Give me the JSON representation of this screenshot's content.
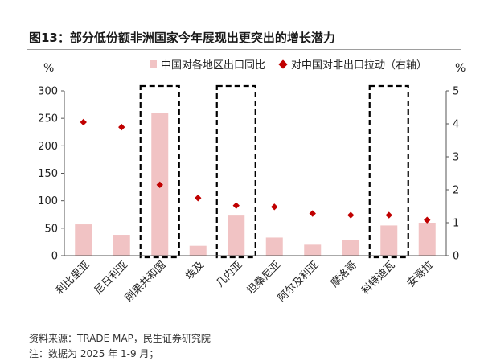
{
  "title": "图13：部分低份额非洲国家今年展现出更突出的增长潜力",
  "source": "资料来源：TRADE MAP，民生证券研究院",
  "note": "注：数据为 2025 年 1-9 月；",
  "chart_data": {
    "type": "bar",
    "categories": [
      "利比里亚",
      "尼日利亚",
      "刚果共和国",
      "埃及",
      "几内亚",
      "坦桑尼亚",
      "阿尔及利亚",
      "摩洛哥",
      "科特迪瓦",
      "安哥拉"
    ],
    "series": [
      {
        "name": "中国对各地区出口同比",
        "type": "bar",
        "axis": "left",
        "values": [
          57,
          38,
          260,
          18,
          73,
          33,
          20,
          28,
          55,
          60
        ]
      },
      {
        "name": "对中国对非出口拉动（右轴）",
        "type": "scatter",
        "axis": "right",
        "values": [
          4.05,
          3.9,
          2.15,
          1.75,
          1.52,
          1.48,
          1.28,
          1.23,
          1.23,
          1.08
        ]
      }
    ],
    "y_left": {
      "unit": "%",
      "ylim": [
        0,
        300
      ],
      "ticks": [
        0,
        50,
        100,
        150,
        200,
        250,
        300
      ]
    },
    "y_right": {
      "unit": "%",
      "ylim": [
        0,
        5
      ],
      "ticks": [
        0,
        1,
        2,
        3,
        4,
        5
      ]
    },
    "highlighted_categories": [
      "刚果共和国",
      "几内亚",
      "科特迪瓦"
    ],
    "legend_position": "top",
    "grid": false,
    "colors": {
      "bar": "#f1c3c4",
      "marker": "#c00000",
      "axis": "#555555"
    }
  }
}
